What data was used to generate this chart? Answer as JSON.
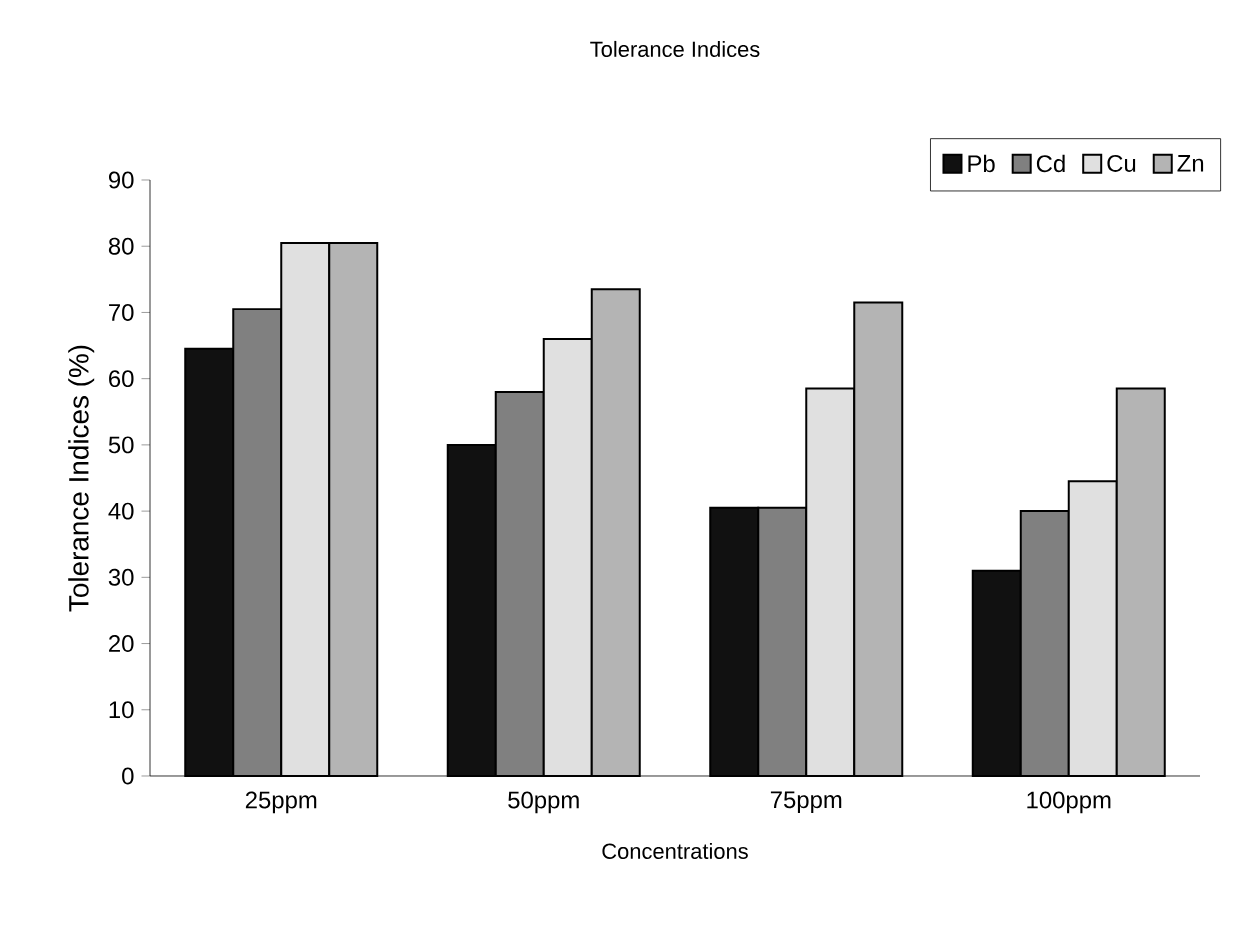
{
  "chart_data": {
    "type": "bar",
    "title": "Tolerance Indices",
    "xlabel": "Concentrations",
    "ylabel": "Tolerance Indices (%)",
    "categories": [
      "25ppm",
      "50ppm",
      "75ppm",
      "100ppm"
    ],
    "series": [
      {
        "name": "Pb",
        "color": "#111111",
        "values": [
          64.5,
          50,
          40.5,
          31
        ]
      },
      {
        "name": "Cd",
        "color": "#808080",
        "values": [
          70.5,
          58,
          40.5,
          40
        ]
      },
      {
        "name": "Cu",
        "color": "#e0e0e0",
        "values": [
          80.5,
          66,
          58.5,
          44.5
        ]
      },
      {
        "name": "Zn",
        "color": "#b4b4b4",
        "values": [
          80.5,
          73.5,
          71.5,
          58.5
        ]
      }
    ],
    "ylim": [
      0,
      90
    ],
    "yticks": [
      0,
      10,
      20,
      30,
      40,
      50,
      60,
      70,
      80,
      90
    ],
    "grid": false,
    "legend": "top right"
  }
}
